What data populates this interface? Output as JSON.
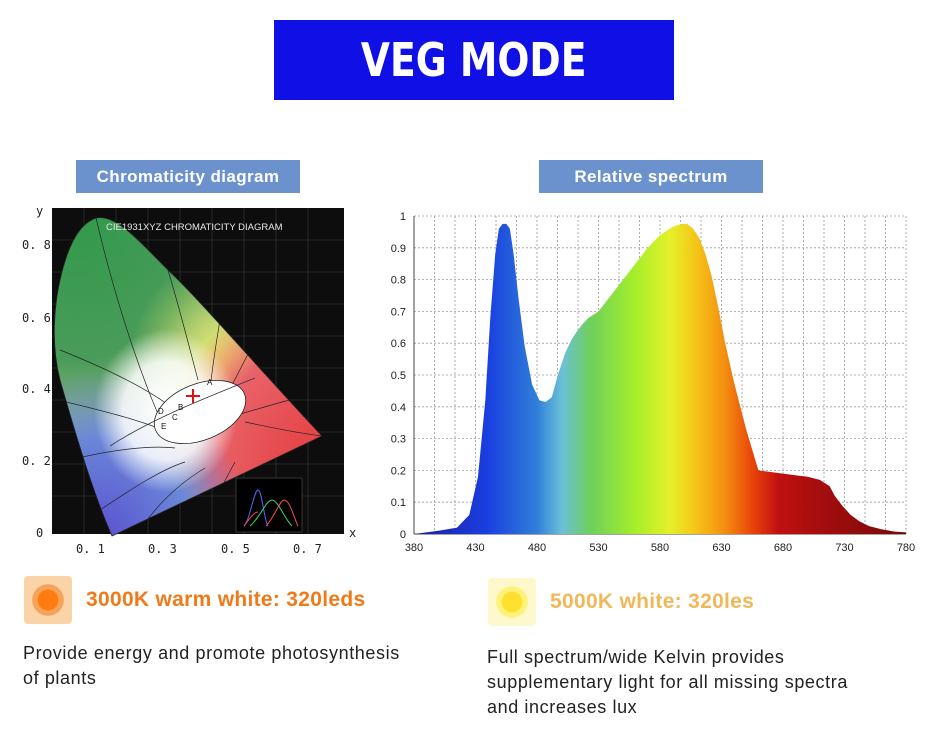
{
  "banner": {
    "title": "VEG MODE",
    "color": "#1010e6"
  },
  "left_section": {
    "label": "Chromaticity diagram",
    "diagram_title": "CIE1931XYZ CHROMATICITY DIAGRAM",
    "axis_x_label": "x",
    "axis_y_label": "y",
    "y_ticks": [
      "0. 8",
      "0. 6",
      "0. 4",
      "0. 2",
      "0"
    ],
    "x_ticks": [
      "0. 1",
      "0. 3",
      "0. 5",
      "0. 7"
    ],
    "point_labels": [
      "A",
      "B",
      "C",
      "D",
      "E"
    ]
  },
  "chart_data": {
    "type": "area",
    "title": "Relative spectrum",
    "xlabel": "",
    "ylabel": "",
    "xlim": [
      380,
      780
    ],
    "ylim": [
      0,
      1
    ],
    "x_ticks": [
      380,
      430,
      480,
      530,
      580,
      630,
      680,
      730,
      780
    ],
    "y_ticks": [
      0,
      0.1,
      0.2,
      0.3,
      0.4,
      0.5,
      0.6,
      0.7,
      0.8,
      0.9,
      1
    ],
    "grid": true,
    "series": [
      {
        "x": [
          380,
          400,
          415,
          425,
          432,
          438,
          442,
          446,
          449,
          452,
          455,
          458,
          461,
          465,
          470,
          476,
          482,
          487,
          492,
          497,
          503,
          508,
          512,
          517,
          522,
          530,
          540,
          550,
          560,
          570,
          580,
          590,
          597,
          602,
          607,
          612,
          617,
          622,
          627,
          633,
          640,
          650,
          660,
          670,
          680,
          690,
          700,
          710,
          718,
          722,
          728,
          735,
          742,
          750,
          760,
          770,
          780
        ],
        "y": [
          0,
          0.01,
          0.02,
          0.06,
          0.18,
          0.42,
          0.68,
          0.88,
          0.96,
          0.975,
          0.975,
          0.96,
          0.88,
          0.74,
          0.59,
          0.47,
          0.42,
          0.415,
          0.43,
          0.5,
          0.57,
          0.61,
          0.635,
          0.66,
          0.68,
          0.7,
          0.75,
          0.8,
          0.85,
          0.9,
          0.94,
          0.965,
          0.975,
          0.975,
          0.96,
          0.93,
          0.88,
          0.81,
          0.72,
          0.6,
          0.48,
          0.33,
          0.2,
          0.195,
          0.19,
          0.185,
          0.18,
          0.17,
          0.15,
          0.12,
          0.09,
          0.06,
          0.04,
          0.025,
          0.015,
          0.008,
          0.005
        ]
      }
    ]
  },
  "led_warm": {
    "label": "3000K warm white: 320leds",
    "color": "#f07a1a",
    "desc": [
      "Provide energy and promote photosynthesis",
      "of plants"
    ]
  },
  "led_white": {
    "label": "5000K white: 320les",
    "color": "#f1b85a",
    "desc": [
      "Full spectrum/wide Kelvin provides",
      "supplementary light for all missing spectra",
      "and increases lux"
    ]
  }
}
